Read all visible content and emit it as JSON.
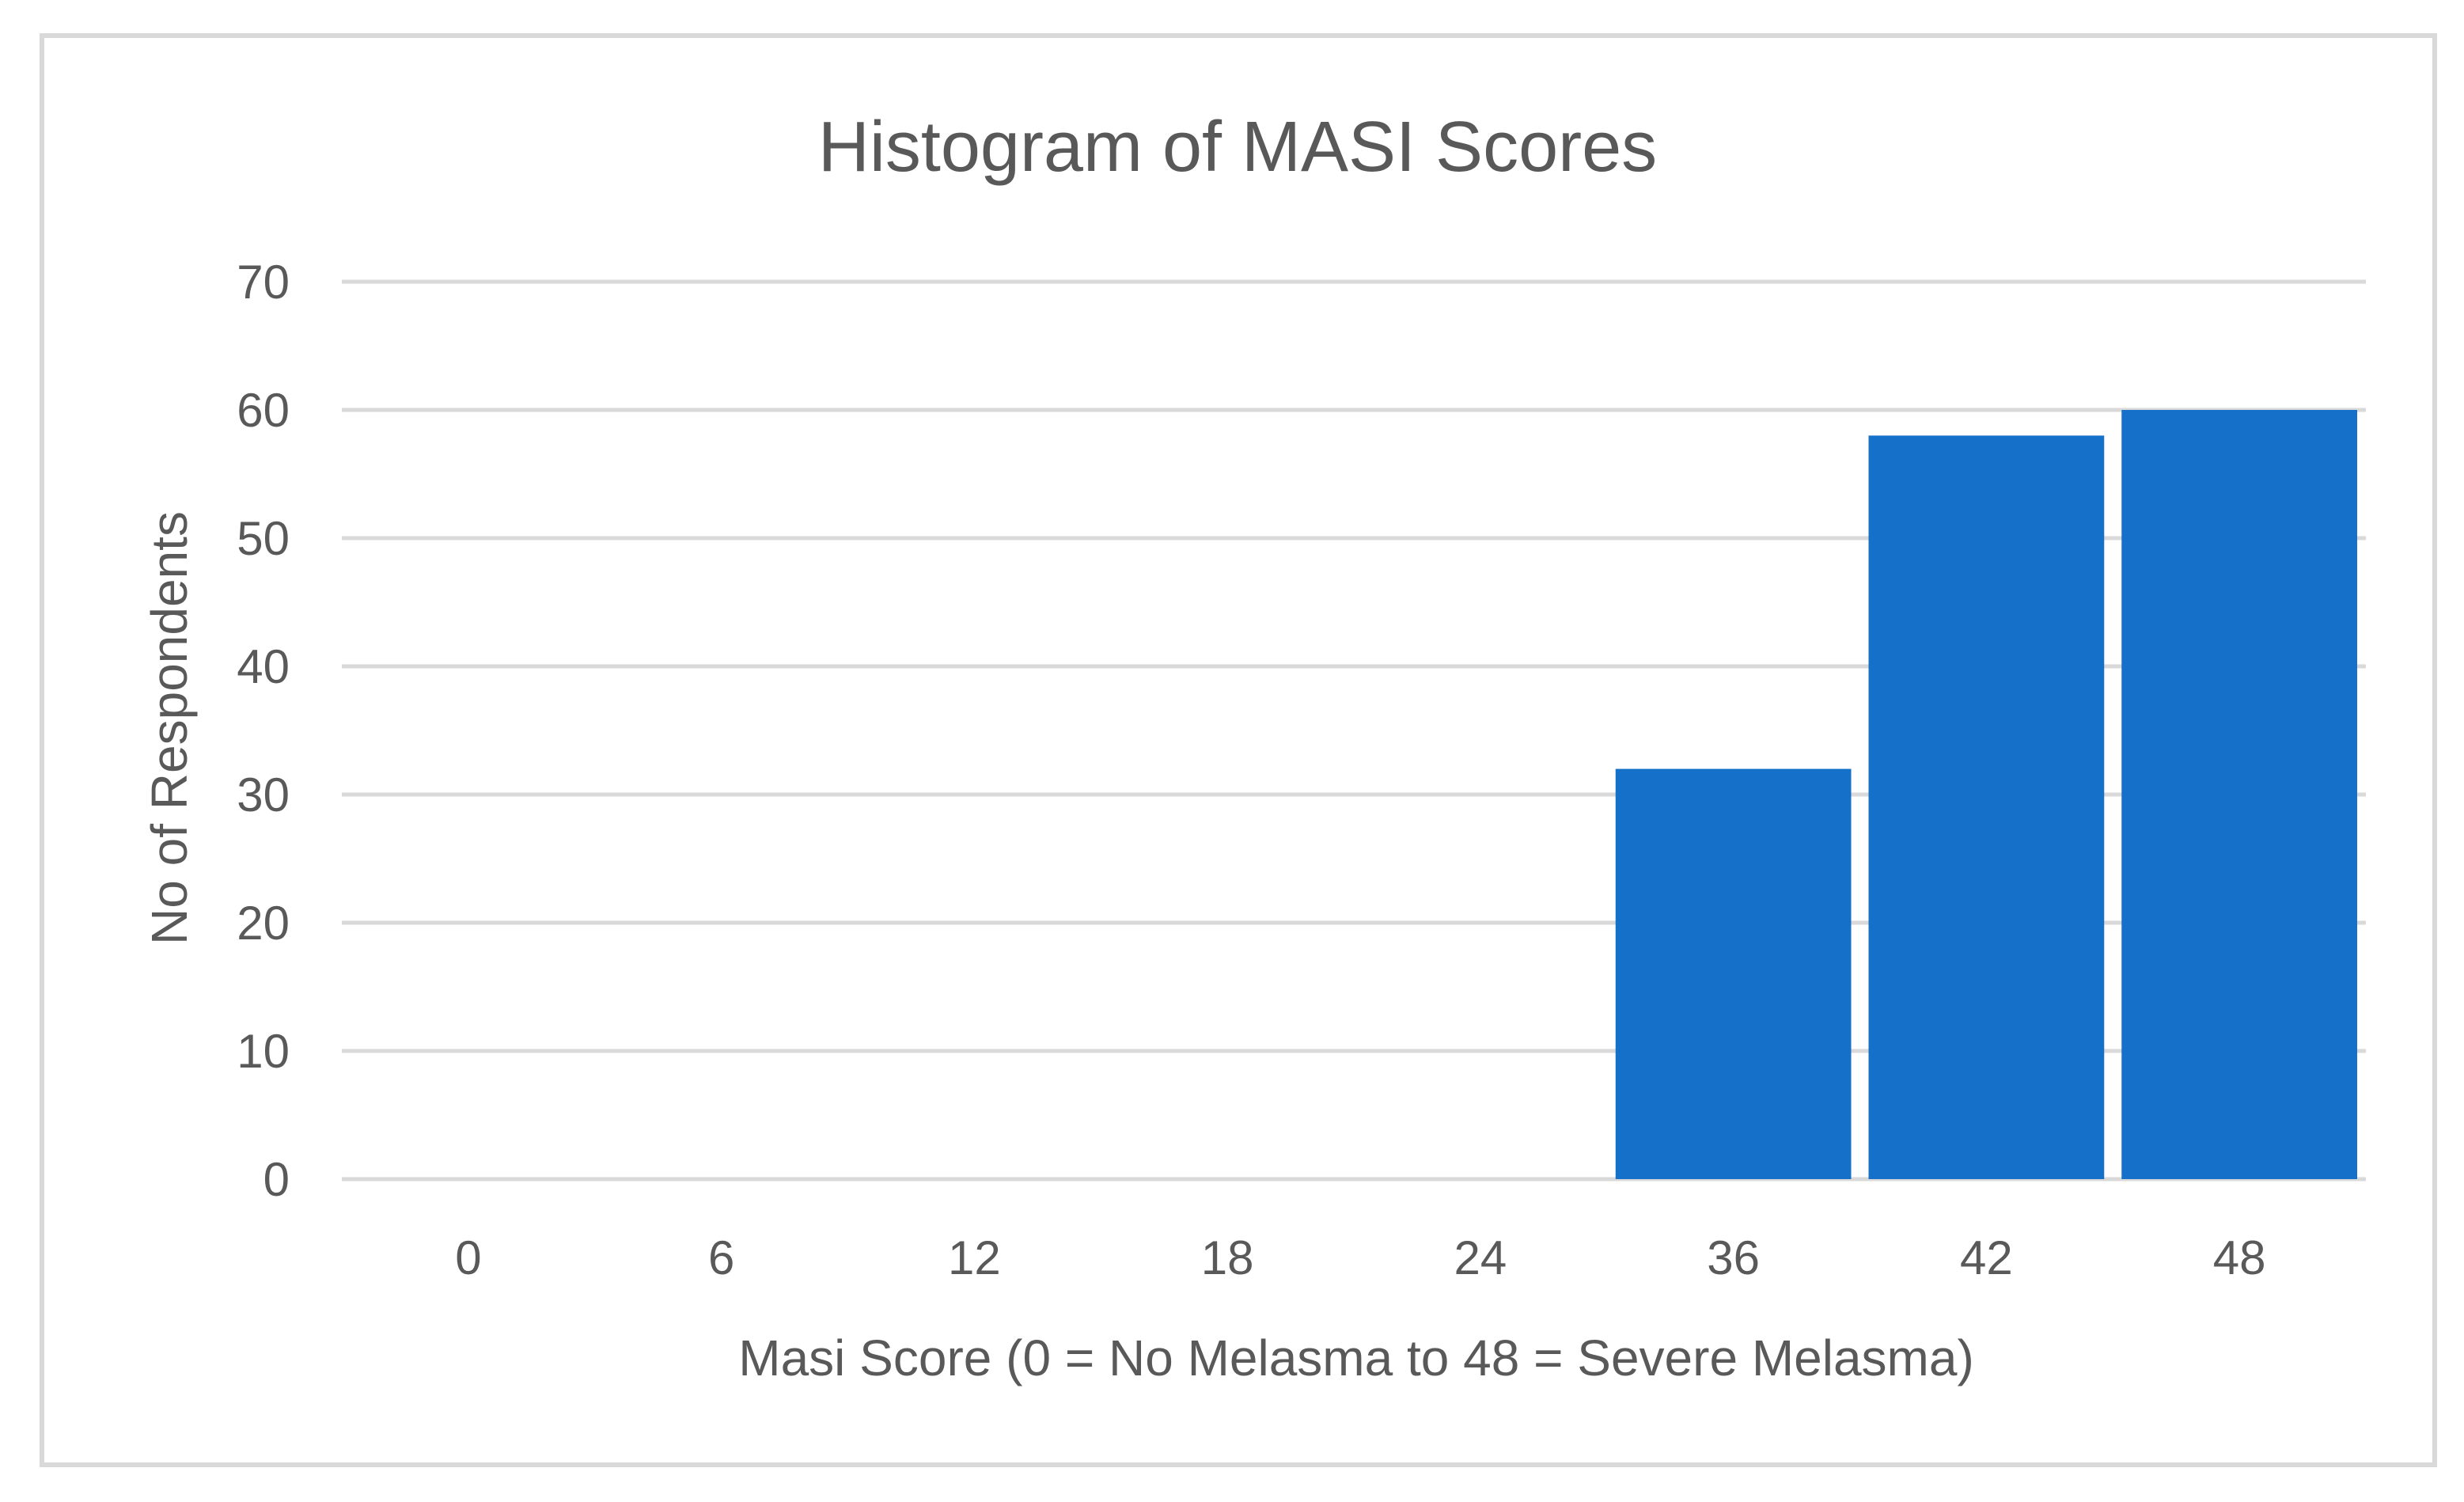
{
  "chart_data": {
    "type": "bar",
    "title": "Histogram of MASI Scores",
    "xlabel": "Masi Score (0 = No Melasma to 48 = Severe Melasma)",
    "ylabel": "No of Respondents",
    "categories": [
      "0",
      "6",
      "12",
      "18",
      "24",
      "36",
      "42",
      "48"
    ],
    "values": [
      0,
      0,
      0,
      0,
      0,
      32,
      58,
      60
    ],
    "ylim": [
      0,
      70
    ],
    "yticks": [
      0,
      10,
      20,
      30,
      40,
      50,
      60,
      70
    ],
    "grid": true,
    "legend": "none",
    "colors": {
      "bar": "#1570c9",
      "grid": "#d9d9d9",
      "text": "#595959",
      "frame": "#d9d9d9"
    }
  }
}
